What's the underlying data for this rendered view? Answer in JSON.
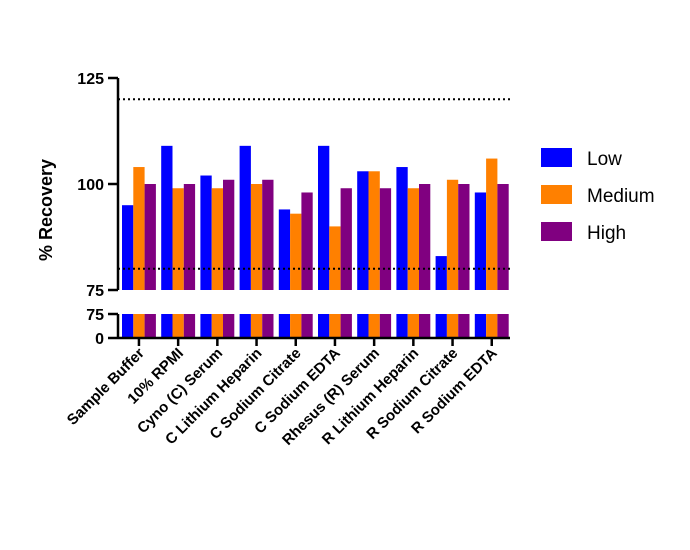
{
  "chart_data": {
    "type": "bar",
    "ylabel": "% Recovery",
    "y_ticks_upper": [
      "75",
      "100",
      "125"
    ],
    "y_ticks_lower": [
      "0",
      "75"
    ],
    "ylim": [
      75,
      125
    ],
    "axis_break": {
      "lower_range": [
        0,
        75
      ],
      "upper_range": [
        75,
        125
      ]
    },
    "reference_lines": [
      120,
      80
    ],
    "legend_position": "right",
    "colors": {
      "Low": "#0000ff",
      "Medium": "#ff8000",
      "High": "#800080"
    },
    "categories": [
      "Sample Buffer",
      "10% RPMI",
      "Cyno (C) Serum",
      "C Lithium Heparin",
      "C Sodium Citrate",
      "C Sodium EDTA",
      "Rhesus (R) Serum",
      "R Lithium Heparin",
      "R Sodium Citrate",
      "R Sodium EDTA"
    ],
    "series": [
      {
        "name": "Low",
        "values": [
          95,
          109,
          102,
          109,
          94,
          109,
          103,
          104,
          83,
          98
        ]
      },
      {
        "name": "Medium",
        "values": [
          104,
          99,
          99,
          100,
          93,
          90,
          103,
          99,
          101,
          106
        ]
      },
      {
        "name": "High",
        "values": [
          100,
          100,
          101,
          101,
          98,
          99,
          99,
          100,
          100,
          100
        ]
      }
    ]
  }
}
